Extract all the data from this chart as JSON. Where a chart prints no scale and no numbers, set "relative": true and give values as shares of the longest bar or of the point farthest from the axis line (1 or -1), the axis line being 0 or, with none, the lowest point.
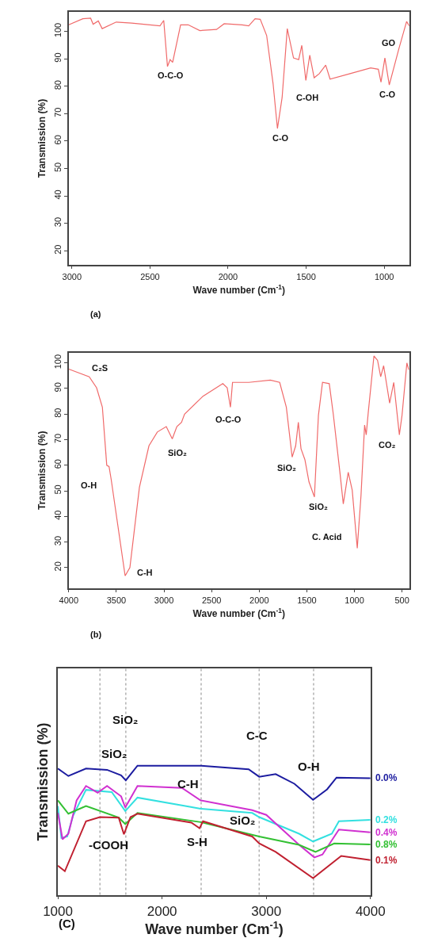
{
  "chart_data": [
    {
      "type": "line",
      "xlabel": "Wave number (Cm$^{-1}$)",
      "ylabel": "Transmission (%)",
      "xlim": [
        3020,
        840
      ],
      "ylim": [
        15,
        107
      ],
      "xticks": [
        3000,
        2500,
        2000,
        1500,
        1000
      ],
      "yticks": [
        20,
        30,
        40,
        50,
        60,
        70,
        80,
        90,
        100
      ],
      "grid": false,
      "legend": false,
      "marker": "none",
      "line_style": "solid",
      "annotations": [
        "(a)",
        {
          "text": "O-C-O",
          "x": 2388,
          "y": 87.2
        },
        {
          "text": "C-O",
          "x": 1684,
          "y": 64.6
        },
        {
          "text": "C-OH",
          "x": 1502,
          "y": 82.1
        },
        {
          "text": "C-O",
          "x": 968,
          "y": 80.5
        }
      ],
      "series": [
        {
          "name": "GO",
          "color": "#f06a6a",
          "x": [
            3020,
            2930,
            2880,
            2864,
            2831,
            2806,
            2716,
            2617,
            2436,
            2412,
            2388,
            2371,
            2355,
            2304,
            2255,
            2181,
            2074,
            2025,
            1910,
            1868,
            1827,
            1794,
            1753,
            1712,
            1684,
            1654,
            1621,
            1581,
            1548,
            1528,
            1502,
            1477,
            1449,
            1416,
            1375,
            1347,
            1219,
            1087,
            1038,
            1021,
            996,
            968,
            906,
            857,
            840
          ],
          "values": [
            102.4,
            104.6,
            104.8,
            102.6,
            103.8,
            101,
            103.4,
            103,
            102,
            104,
            87.2,
            89.7,
            88.7,
            102.4,
            102.4,
            100.3,
            100.7,
            102.8,
            102.4,
            102,
            104.6,
            104.4,
            98.5,
            81,
            64.6,
            75.9,
            101,
            90.3,
            89.7,
            94.9,
            82.1,
            91.3,
            83.1,
            84.6,
            87.7,
            82.6,
            84.6,
            86.7,
            86.2,
            81.5,
            90.3,
            80.5,
            93.8,
            103.6,
            102
          ]
        }
      ]
    },
    {
      "type": "line",
      "xlabel": "Wave number (Cm$^{-1}$)",
      "ylabel": "Transmission (%)",
      "xlim": [
        4000,
        424
      ],
      "ylim": [
        12,
        104
      ],
      "xticks": [
        4000,
        3500,
        3000,
        2500,
        2000,
        1500,
        1000,
        500
      ],
      "yticks": [
        20,
        30,
        40,
        50,
        60,
        70,
        80,
        90,
        100
      ],
      "grid": false,
      "legend": false,
      "marker": "none",
      "line_style": "solid",
      "annotations": [
        "(b)",
        {
          "text": "O-H",
          "x": 3555,
          "y": 54.6
        },
        {
          "text": "C-H",
          "x": 3408,
          "y": 16.8
        },
        {
          "text": "SiO₂",
          "x": 2913,
          "y": 70.3
        },
        {
          "text": "O-C-O",
          "x": 2302,
          "y": 82.7
        },
        {
          "text": "SiO₂",
          "x": 1654,
          "y": 63.2
        },
        {
          "text": "SiO₂",
          "x": 1420,
          "y": 47.6
        },
        {
          "text": "C. Acid",
          "x": 970,
          "y": 27.6
        },
        {
          "text": "CO₂",
          "x": 528,
          "y": 71.9
        }
      ],
      "series": [
        {
          "name": "C₂S",
          "color": "#f06a6a",
          "x": [
            4000,
            3785,
            3708,
            3647,
            3601,
            3577,
            3555,
            3408,
            3358,
            3258,
            3158,
            3070,
            2976,
            2913,
            2865,
            2816,
            2784,
            2590,
            2382,
            2336,
            2302,
            2280,
            2109,
            1883,
            1785,
            1715,
            1654,
            1617,
            1589,
            1561,
            1520,
            1477,
            1420,
            1378,
            1335,
            1264,
            1222,
            1151,
            1117,
            1065,
            1023,
            970,
            931,
            893,
            876,
            855,
            795,
            757,
            724,
            693,
            630,
            587,
            528,
            500,
            449,
            429
          ],
          "values": [
            97.6,
            94.6,
            90.3,
            82.7,
            60,
            59.5,
            54.6,
            16.8,
            20,
            51.4,
            67.6,
            73,
            75.1,
            70.3,
            75.1,
            76.8,
            80,
            87,
            91.9,
            90.3,
            82.7,
            92.4,
            92.4,
            93.3,
            92.4,
            82.7,
            63.2,
            67.6,
            76.8,
            66.5,
            62.2,
            53.5,
            47.6,
            79.5,
            92.4,
            91.9,
            80,
            56.8,
            44.9,
            57.3,
            50.3,
            27.6,
            48.1,
            75.7,
            71.9,
            80.5,
            102.7,
            101,
            94.6,
            98.9,
            84.3,
            92.4,
            71.9,
            79.5,
            100,
            97.3
          ]
        }
      ]
    },
    {
      "type": "line",
      "relative": true,
      "xlabel": "Wave number (Cm$^{-1}$)",
      "ylabel": "Transmission (%)",
      "xlim": [
        1000,
        4000
      ],
      "xticks": [
        1000,
        2000,
        3000,
        4000
      ],
      "tick_labels": "x",
      "grid": false,
      "legend": false,
      "marker": "none",
      "line_style": "solid",
      "annotations": [
        "(C)",
        {
          "text": "SiO₂",
          "x": 1472,
          "y": 0.968
        },
        {
          "text": "C-H",
          "x": 2371,
          "y": 0.731
        },
        {
          "text": "C-C",
          "x": 2932,
          "y": 0.914
        },
        {
          "text": "O-H",
          "x": 3449,
          "y": 0.735
        },
        {
          "text": "SiO₂",
          "x": 2932,
          "y": 0.602
        },
        {
          "text": "-COOH",
          "x": 1404,
          "y": 0.602
        },
        {
          "text": "S-H",
          "x": 2360,
          "y": 0.516
        }
      ],
      "ref_lines": [
        {
          "axis": "x",
          "value": 1404,
          "color": "#b0b0b0",
          "line_style": "dotted"
        },
        {
          "axis": "x",
          "value": 1652,
          "label": "SiO₂",
          "color": "#b0b0b0",
          "line_style": "dotted"
        },
        {
          "axis": "x",
          "value": 2375,
          "color": "#b0b0b0",
          "line_style": "dotted"
        },
        {
          "axis": "x",
          "value": 2932,
          "color": "#b0b0b0",
          "line_style": "dotted"
        },
        {
          "axis": "x",
          "value": 3454,
          "color": "#b0b0b0",
          "line_style": "dotted"
        }
      ],
      "series": [
        {
          "name": "0.0%",
          "color": "#1c1ca0",
          "x": [
            1000,
            1101,
            1270,
            1472,
            1607,
            1652,
            1764,
            2371,
            2831,
            2932,
            3090,
            3270,
            3449,
            3584,
            3674,
            4000
          ],
          "values": [
            0.978,
            0.92,
            0.978,
            0.968,
            0.925,
            0.886,
            1.0,
            1.0,
            0.972,
            0.914,
            0.935,
            0.86,
            0.735,
            0.817,
            0.908,
            0.903
          ]
        },
        {
          "name": "0.2%",
          "color": "#33e0e0",
          "x": [
            1000,
            1034,
            1090,
            1146,
            1270,
            1517,
            1647,
            1764,
            2371,
            2865,
            2932,
            3315,
            3449,
            3629,
            3697,
            4000
          ],
          "values": [
            0.688,
            0.441,
            0.452,
            0.613,
            0.813,
            0.796,
            0.649,
            0.753,
            0.667,
            0.634,
            0.602,
            0.473,
            0.413,
            0.473,
            0.57,
            0.581
          ]
        },
        {
          "name": "0.4%",
          "color": "#d030d0",
          "x": [
            1000,
            1045,
            1101,
            1180,
            1270,
            1382,
            1472,
            1607,
            1647,
            1764,
            2191,
            2371,
            2865,
            3000,
            3315,
            3461,
            3539,
            3697,
            4000
          ],
          "values": [
            0.634,
            0.43,
            0.473,
            0.731,
            0.843,
            0.791,
            0.843,
            0.763,
            0.677,
            0.843,
            0.828,
            0.731,
            0.656,
            0.619,
            0.387,
            0.29,
            0.312,
            0.505,
            0.484
          ]
        },
        {
          "name": "0.8%",
          "color": "#33c033",
          "x": [
            1000,
            1101,
            1270,
            1584,
            1647,
            1764,
            2371,
            2932,
            3315,
            3472,
            3652,
            4000
          ],
          "values": [
            0.731,
            0.628,
            0.688,
            0.598,
            0.548,
            0.634,
            0.563,
            0.452,
            0.387,
            0.333,
            0.398,
            0.391
          ]
        },
        {
          "name": "0.1%",
          "color": "#c02030",
          "x": [
            1000,
            1067,
            1270,
            1404,
            1584,
            1634,
            1697,
            1764,
            2281,
            2360,
            2393,
            2865,
            2932,
            3090,
            3449,
            3719,
            4000
          ],
          "values": [
            0.226,
            0.183,
            0.57,
            0.602,
            0.598,
            0.469,
            0.602,
            0.628,
            0.559,
            0.516,
            0.57,
            0.452,
            0.398,
            0.333,
            0.129,
            0.301,
            0.269
          ]
        }
      ]
    }
  ]
}
